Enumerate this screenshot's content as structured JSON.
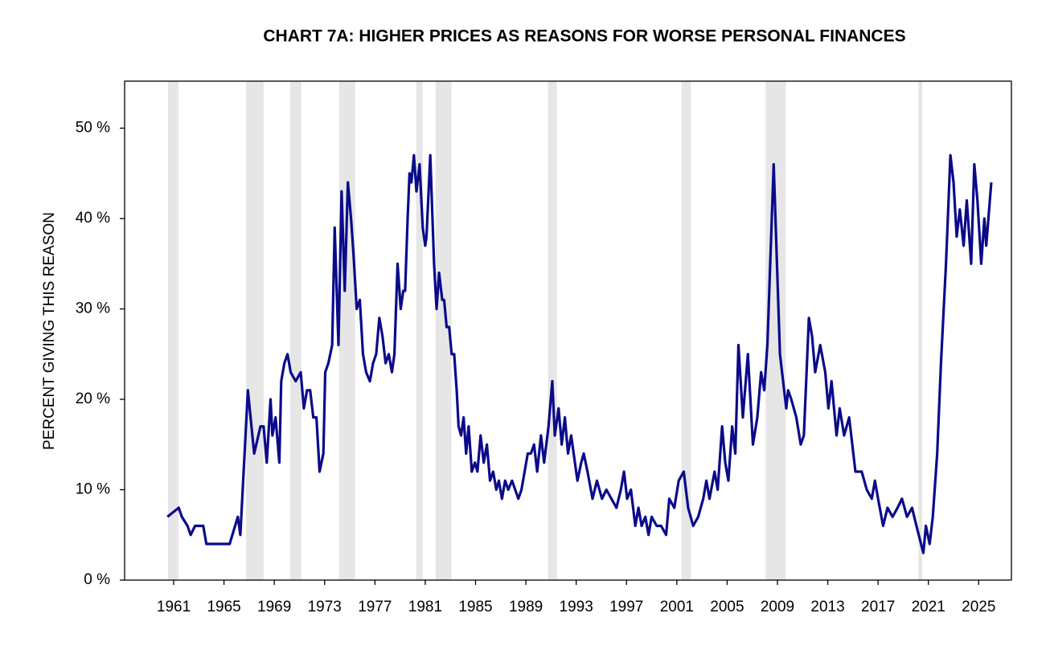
{
  "chart_data": {
    "type": "line",
    "title": "CHART 7A: HIGHER PRICES AS REASONS FOR WORSE PERSONAL FINANCES",
    "y_label": "PERCENT GIVING THIS REASON",
    "xlim": [
      1957.1,
      2027.6
    ],
    "ylim": [
      0,
      55.2
    ],
    "xticks": [
      1961,
      1965,
      1969,
      1973,
      1977,
      1981,
      1985,
      1989,
      1993,
      1997,
      2001,
      2005,
      2009,
      2013,
      2017,
      2021,
      2025
    ],
    "yticks": [
      {
        "value": 0,
        "label": "0 %"
      },
      {
        "value": 10,
        "label": "10 %"
      },
      {
        "value": 20,
        "label": "20 %"
      },
      {
        "value": 30,
        "label": "30 %"
      },
      {
        "value": 40,
        "label": "40 %"
      },
      {
        "value": 50,
        "label": "50 %"
      }
    ],
    "recessions": [
      [
        1960.55,
        1961.38
      ],
      [
        1966.75,
        1968.15
      ],
      [
        1970.26,
        1971.15
      ],
      [
        1974.15,
        1975.43
      ],
      [
        1980.28,
        1980.8
      ],
      [
        1981.82,
        1983.09
      ],
      [
        1990.76,
        1991.46
      ],
      [
        2001.36,
        2002.12
      ],
      [
        2008.06,
        2009.66
      ],
      [
        2020.2,
        2020.51
      ]
    ],
    "recession_color": "#e6e6e6",
    "series": [
      {
        "color": "#0b0b8a",
        "x": [
          1960.5,
          1961.4,
          1961.65,
          1962.1,
          1962.35,
          1962.7,
          1963.35,
          1963.6,
          1965.45,
          1966.1,
          1966.3,
          1966.9,
          1967.4,
          1967.9,
          1968.15,
          1968.4,
          1968.7,
          1968.85,
          1969.1,
          1969.4,
          1969.55,
          1969.8,
          1970.05,
          1970.3,
          1970.7,
          1971.1,
          1971.35,
          1971.6,
          1971.85,
          1972.1,
          1972.35,
          1972.6,
          1972.9,
          1973.05,
          1973.3,
          1973.6,
          1973.8,
          1974.1,
          1974.35,
          1974.6,
          1974.85,
          1975.1,
          1975.3,
          1975.55,
          1975.8,
          1976.05,
          1976.3,
          1976.6,
          1976.85,
          1977.1,
          1977.35,
          1977.6,
          1977.85,
          1978.1,
          1978.35,
          1978.55,
          1978.8,
          1979.05,
          1979.25,
          1979.4,
          1979.6,
          1979.75,
          1979.9,
          1980.1,
          1980.3,
          1980.55,
          1980.8,
          1981.0,
          1981.1,
          1981.4,
          1981.55,
          1981.7,
          1981.9,
          1982.1,
          1982.35,
          1982.5,
          1982.7,
          1982.9,
          1983.1,
          1983.3,
          1983.5,
          1983.65,
          1983.85,
          1984.05,
          1984.25,
          1984.45,
          1984.7,
          1984.95,
          1985.15,
          1985.4,
          1985.65,
          1985.9,
          1986.15,
          1986.4,
          1986.65,
          1986.85,
          1987.1,
          1987.35,
          1987.6,
          1987.9,
          1988.15,
          1988.4,
          1988.65,
          1988.9,
          1989.15,
          1989.4,
          1989.65,
          1989.9,
          1990.2,
          1990.45,
          1990.8,
          1991.1,
          1991.3,
          1991.6,
          1991.85,
          1992.1,
          1992.35,
          1992.6,
          1992.9,
          1993.1,
          1993.4,
          1993.6,
          1993.9,
          1994.3,
          1994.65,
          1995.05,
          1995.4,
          1995.8,
          1996.2,
          1996.55,
          1996.8,
          1997.05,
          1997.35,
          1997.7,
          1997.95,
          1998.2,
          1998.5,
          1998.75,
          1999.0,
          1999.4,
          1999.75,
          2000.15,
          2000.4,
          2000.8,
          2001.15,
          2001.55,
          2001.9,
          2002.3,
          2002.7,
          2003.1,
          2003.35,
          2003.6,
          2004.0,
          2004.25,
          2004.6,
          2004.85,
          2005.1,
          2005.4,
          2005.65,
          2005.9,
          2006.25,
          2006.65,
          2007.05,
          2007.4,
          2007.7,
          2007.95,
          2008.2,
          2008.7,
          2009.2,
          2009.7,
          2009.85,
          2010.1,
          2010.5,
          2010.85,
          2011.1,
          2011.5,
          2011.75,
          2012.0,
          2012.4,
          2012.8,
          2013.05,
          2013.3,
          2013.7,
          2013.95,
          2014.3,
          2014.7,
          2015.2,
          2015.7,
          2016.1,
          2016.5,
          2016.75,
          2017.0,
          2017.4,
          2017.75,
          2018.15,
          2018.55,
          2018.9,
          2019.3,
          2019.7,
          2020.05,
          2020.6,
          2020.8,
          2021.1,
          2021.35,
          2021.7,
          2022.0,
          2022.4,
          2022.75,
          2023.0,
          2023.25,
          2023.5,
          2023.8,
          2024.05,
          2024.4,
          2024.65,
          2024.9,
          2025.2,
          2025.45,
          2025.6,
          2026.0
        ],
        "values": [
          7,
          8,
          7,
          6,
          5,
          6,
          6,
          4,
          4,
          7,
          5,
          21,
          14,
          17,
          17,
          13,
          20,
          16,
          18,
          13,
          22,
          24,
          25,
          23,
          22,
          23,
          19,
          21,
          21,
          18,
          18,
          12,
          14,
          23,
          24,
          26,
          39,
          26,
          43,
          32,
          44,
          40,
          36,
          30,
          31,
          25,
          23,
          22,
          24,
          25,
          29,
          27,
          24,
          25,
          23,
          25,
          35,
          30,
          32,
          32,
          40,
          45,
          44,
          47,
          43,
          46,
          39,
          37,
          38,
          47,
          41,
          35,
          30,
          34,
          31,
          31,
          28,
          28,
          25,
          25,
          21,
          17,
          16,
          18,
          14,
          17,
          12,
          13,
          12,
          16,
          13,
          15,
          11,
          12,
          10,
          11,
          9,
          11,
          10,
          11,
          10,
          9,
          10,
          12,
          14,
          14,
          15,
          12,
          16,
          13,
          17,
          22,
          16,
          19,
          15,
          18,
          14,
          16,
          13,
          11,
          13,
          14,
          12,
          9,
          11,
          9,
          10,
          9,
          8,
          10,
          12,
          9,
          10,
          6,
          8,
          6,
          7,
          5,
          7,
          6,
          6,
          5,
          9,
          8,
          11,
          12,
          8,
          6,
          7,
          9,
          11,
          9,
          12,
          10,
          17,
          13,
          11,
          17,
          14,
          26,
          18,
          25,
          15,
          18,
          23,
          21,
          26,
          46,
          25,
          19,
          21,
          20,
          18,
          15,
          16,
          29,
          27,
          23,
          26,
          23,
          19,
          22,
          16,
          19,
          16,
          18,
          12,
          12,
          10,
          9,
          11,
          9,
          6,
          8,
          7,
          8,
          9,
          7,
          8,
          6,
          3,
          6,
          4,
          7,
          14,
          24,
          35,
          47,
          44,
          38,
          41,
          37,
          42,
          35,
          46,
          42,
          35,
          40,
          37,
          44
        ]
      }
    ]
  }
}
